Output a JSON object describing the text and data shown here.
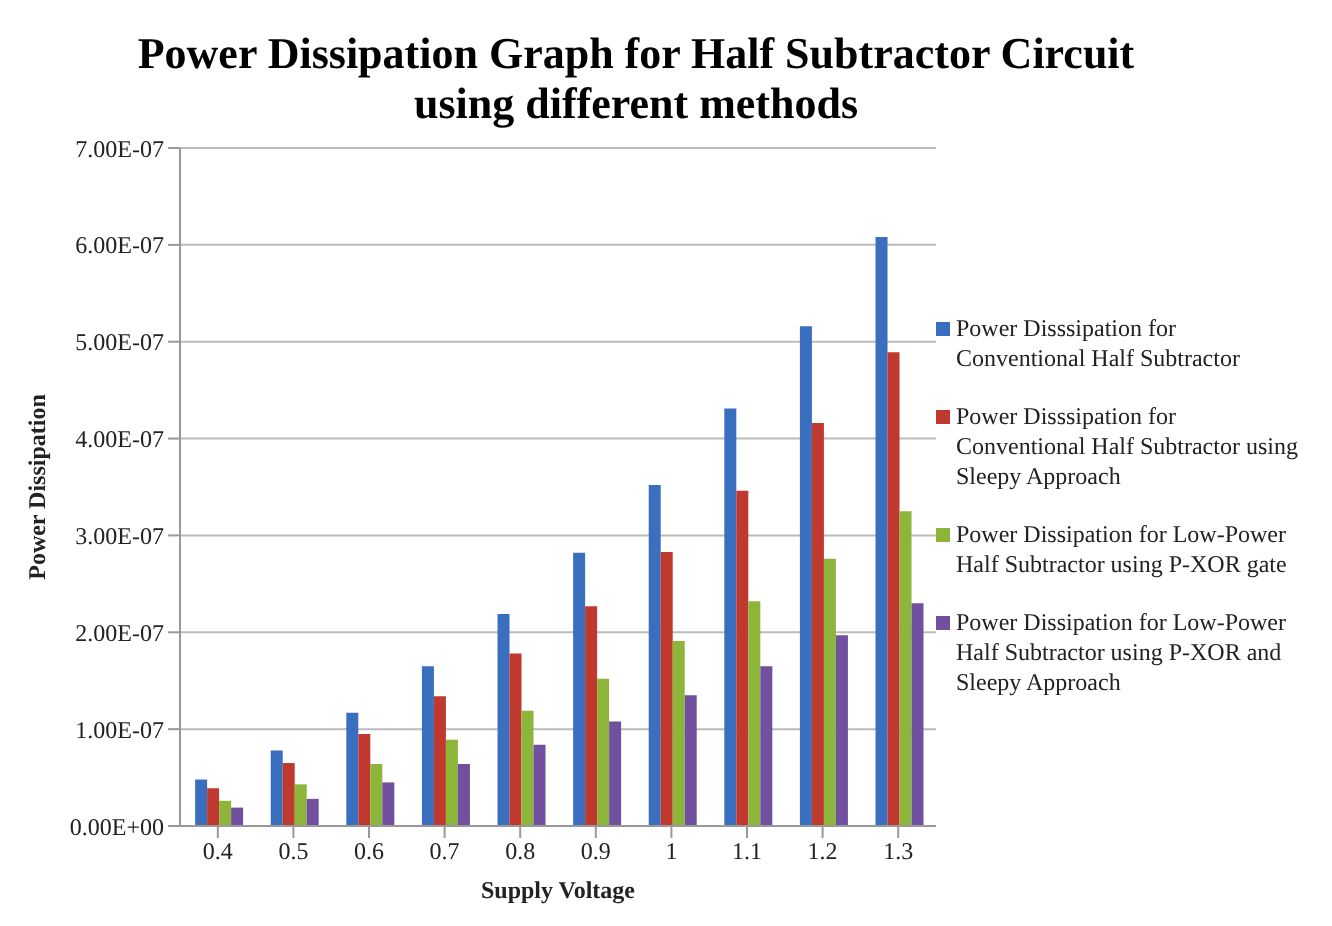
{
  "chart_data": {
    "type": "bar",
    "title": "Power Dissipation Graph for Half Subtractor Circuit using different methods",
    "xlabel": "Supply Voltage",
    "ylabel": "Power Dissipation",
    "categories": [
      "0.4",
      "0.5",
      "0.6",
      "0.7",
      "0.8",
      "0.9",
      "1",
      "1.1",
      "1.2",
      "1.3"
    ],
    "series": [
      {
        "name": "Power Disssipation for Conventional Half Subtractor",
        "color": "#3a6fc0",
        "values": [
          4.8e-08,
          7.8e-08,
          1.17e-07,
          1.65e-07,
          2.19e-07,
          2.82e-07,
          3.52e-07,
          4.31e-07,
          5.16e-07,
          6.08e-07
        ]
      },
      {
        "name": "Power Disssipation for Conventional Half Subtractor using Sleepy Approach",
        "color": "#c0392f",
        "values": [
          3.9e-08,
          6.5e-08,
          9.5e-08,
          1.34e-07,
          1.78e-07,
          2.27e-07,
          2.83e-07,
          3.46e-07,
          4.16e-07,
          4.89e-07
        ]
      },
      {
        "name": "Power Dissipation for Low-Power Half Subtractor using P-XOR gate",
        "color": "#8db53a",
        "values": [
          2.6e-08,
          4.3e-08,
          6.4e-08,
          8.9e-08,
          1.19e-07,
          1.52e-07,
          1.91e-07,
          2.32e-07,
          2.76e-07,
          3.25e-07
        ]
      },
      {
        "name": "Power Dissipation for Low-Power Half Subtractor using P-XOR and Sleepy Approach",
        "color": "#7150a0",
        "values": [
          1.9e-08,
          2.8e-08,
          4.5e-08,
          6.4e-08,
          8.4e-08,
          1.08e-07,
          1.35e-07,
          1.65e-07,
          1.97e-07,
          2.3e-07
        ]
      }
    ],
    "ylim": [
      0,
      7e-07
    ],
    "yticks": [
      {
        "value": 0,
        "label": "0.00E+00"
      },
      {
        "value": 1e-07,
        "label": "1.00E-07"
      },
      {
        "value": 2e-07,
        "label": "2.00E-07"
      },
      {
        "value": 3e-07,
        "label": "3.00E-07"
      },
      {
        "value": 4e-07,
        "label": "4.00E-07"
      },
      {
        "value": 5e-07,
        "label": "5.00E-07"
      },
      {
        "value": 6e-07,
        "label": "6.00E-07"
      },
      {
        "value": 7e-07,
        "label": "7.00E-07"
      }
    ],
    "grid": "y",
    "legend": "right"
  }
}
